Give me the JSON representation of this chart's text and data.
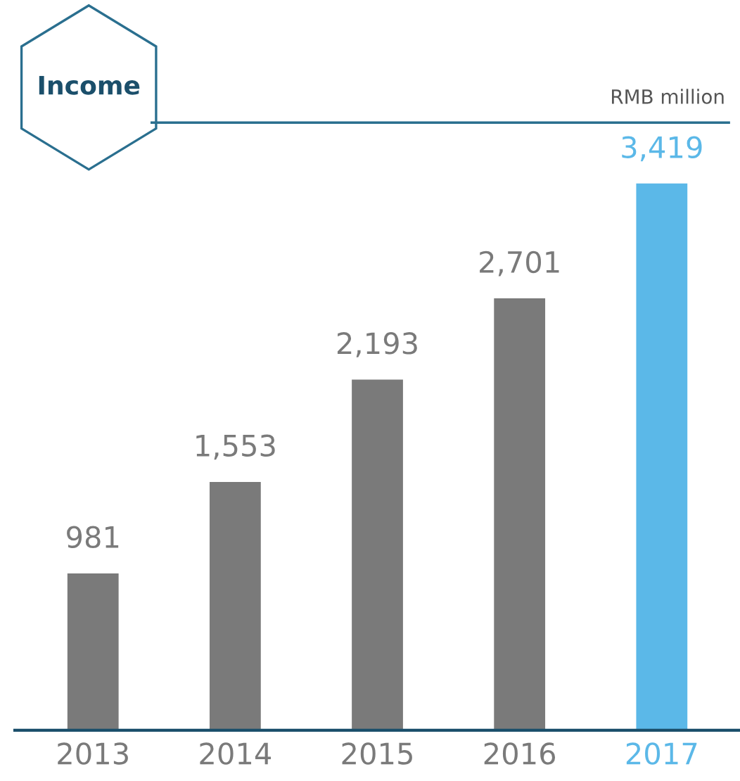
{
  "chart_data": {
    "type": "bar",
    "title": "Income",
    "subtitle": "RMB million",
    "categories": [
      "2013",
      "2014",
      "2015",
      "2016",
      "2017"
    ],
    "values": [
      981,
      1553,
      2193,
      2701,
      3419
    ],
    "colors": [
      "#7a7a7a",
      "#7a7a7a",
      "#7a7a7a",
      "#7a7a7a",
      "#5bb8e8"
    ],
    "value_labels": [
      "981",
      "1,553",
      "2,193",
      "2,701",
      "3,419"
    ],
    "grid": false,
    "legend": false
  }
}
